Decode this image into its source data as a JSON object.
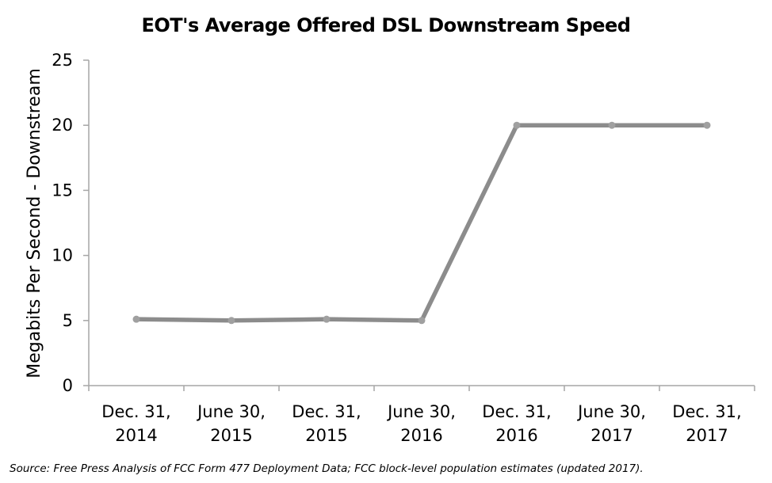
{
  "chart_data": {
    "type": "line",
    "title": "EOT's Average Offered DSL Downstream Speed",
    "ylabel": "Megabits Per Second - Downstream",
    "xlabel": "",
    "ylim": [
      0,
      25
    ],
    "yticks": [
      "0",
      "5",
      "10",
      "15",
      "20",
      "25"
    ],
    "categories": [
      [
        "Dec. 31,",
        "2014"
      ],
      [
        "June 30,",
        "2015"
      ],
      [
        "Dec. 31,",
        "2015"
      ],
      [
        "June 30,",
        "2016"
      ],
      [
        "Dec. 31,",
        "2016"
      ],
      [
        "June 30,",
        "2017"
      ],
      [
        "Dec. 31,",
        "2017"
      ]
    ],
    "series": [
      {
        "values": [
          5.1,
          5.0,
          5.1,
          5.0,
          20.0,
          20.0,
          20.0
        ]
      }
    ],
    "line_color": "#8c8c8c",
    "grid": false,
    "legend": "none"
  },
  "source_note": "Source: Free Press Analysis of FCC Form 477 Deployment Data; FCC block-level population estimates (updated  2017)."
}
